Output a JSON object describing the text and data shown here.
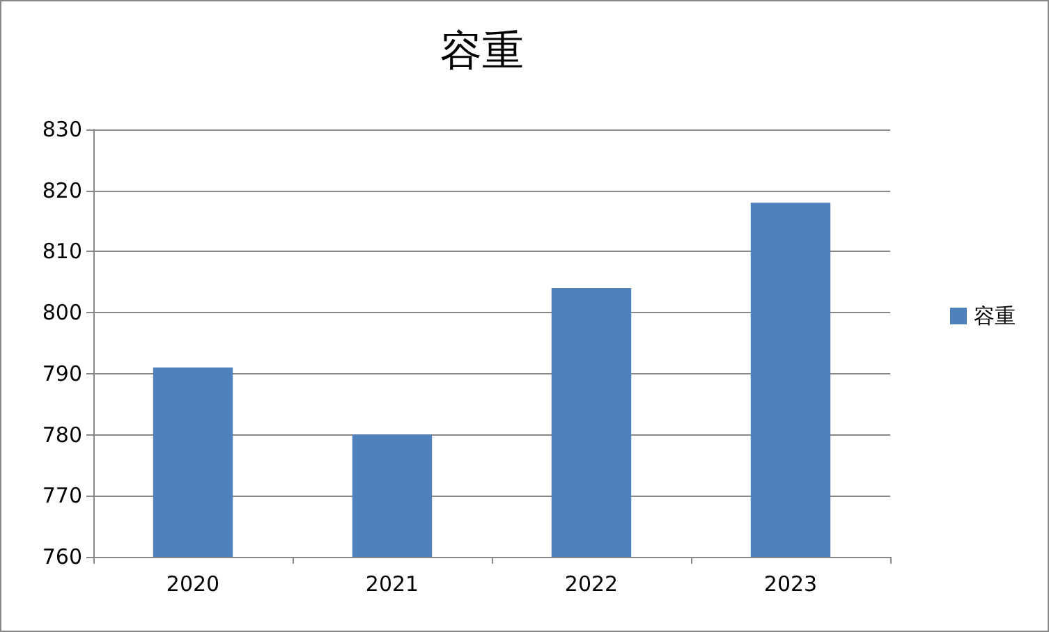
{
  "chart_data": {
    "type": "bar",
    "title": "容重",
    "categories": [
      "2020",
      "2021",
      "2022",
      "2023"
    ],
    "series": [
      {
        "name": "容重",
        "color": "#4f81bd",
        "values": [
          791,
          780,
          804,
          818
        ]
      }
    ],
    "ylim": [
      760,
      830
    ],
    "yticks": [
      760,
      770,
      780,
      790,
      800,
      810,
      820,
      830
    ],
    "grid": "y",
    "legend": "right"
  }
}
